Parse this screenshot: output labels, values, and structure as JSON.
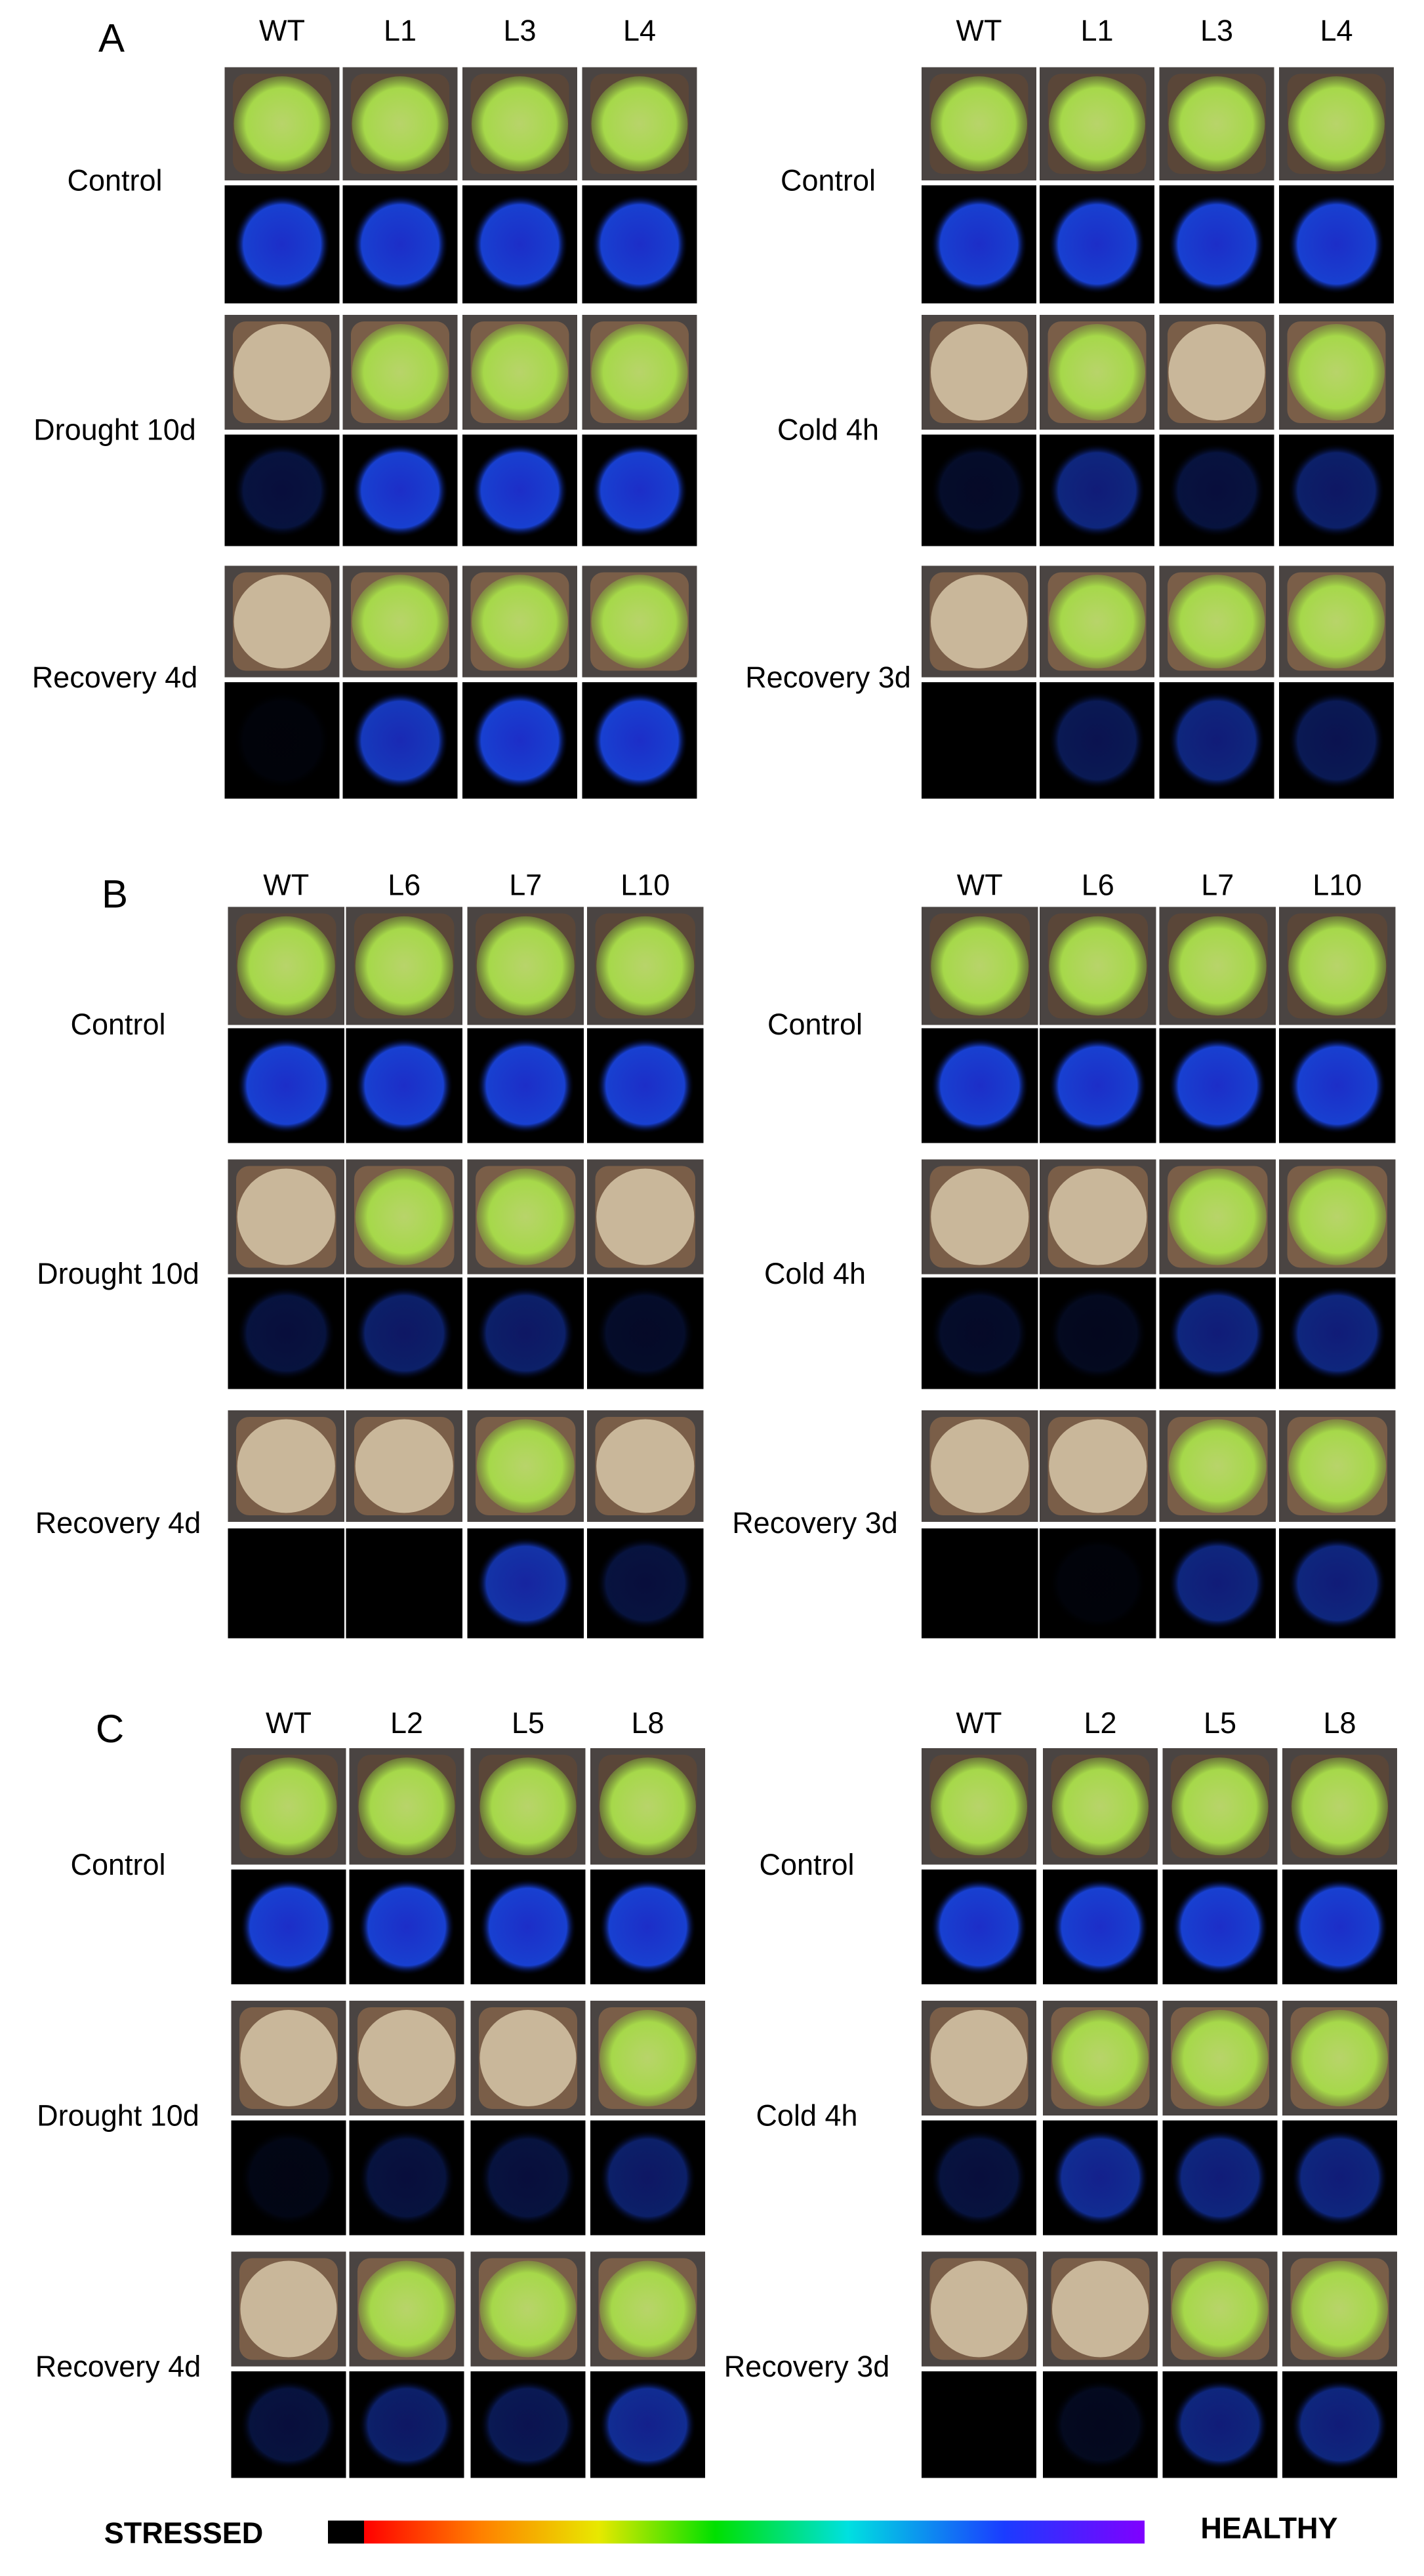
{
  "panels": [
    {
      "label": "A",
      "groups": [
        {
          "columns": [
            "WT",
            "L1",
            "L3",
            "L4"
          ],
          "rows": [
            "Control",
            "Drought 10d",
            "Recovery 4d"
          ]
        },
        {
          "columns": [
            "WT",
            "L1",
            "L3",
            "L4"
          ],
          "rows": [
            "Control",
            "Cold 4h",
            "Recovery 3d"
          ]
        }
      ]
    },
    {
      "label": "B",
      "groups": [
        {
          "columns": [
            "WT",
            "L6",
            "L7",
            "L10"
          ],
          "rows": [
            "Control",
            "Drought 10d",
            "Recovery 4d"
          ]
        },
        {
          "columns": [
            "WT",
            "L6",
            "L7",
            "L10"
          ],
          "rows": [
            "Control",
            "Cold 4h",
            "Recovery 3d"
          ]
        }
      ]
    },
    {
      "label": "C",
      "groups": [
        {
          "columns": [
            "WT",
            "L2",
            "L5",
            "L8"
          ],
          "rows": [
            "Control",
            "Drought 10d",
            "Recovery 4d"
          ]
        },
        {
          "columns": [
            "WT",
            "L2",
            "L5",
            "L8"
          ],
          "rows": [
            "Control",
            "Cold 4h",
            "Recovery 3d"
          ]
        }
      ]
    }
  ],
  "colorbar": {
    "left_label": "STRESSED",
    "right_label": "HEALTHY"
  }
}
